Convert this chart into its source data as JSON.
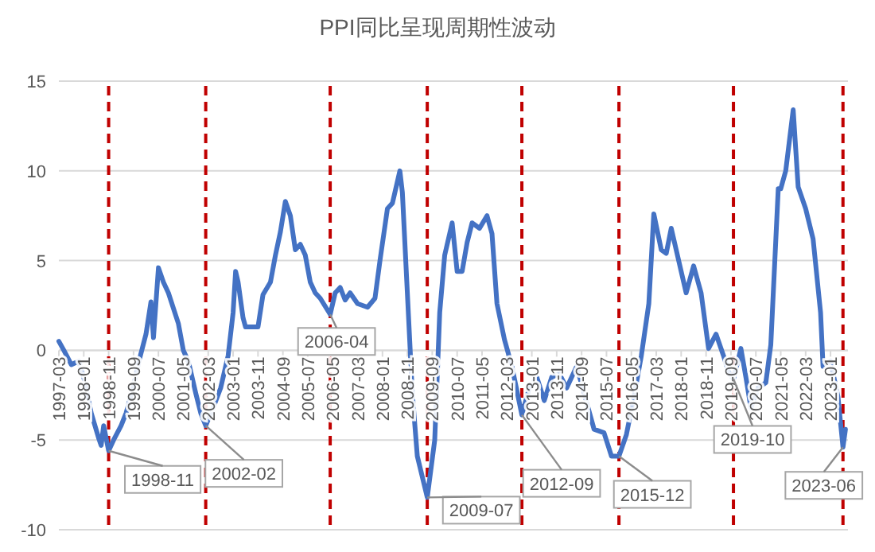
{
  "chart_data": {
    "type": "line",
    "title": "PPI同比呈现周期性波动",
    "x": [
      "1997-03",
      "1997-05",
      "1997-08",
      "1997-11",
      "1998-01",
      "1998-04",
      "1998-07",
      "1998-08",
      "1998-09",
      "1998-11",
      "1999-01",
      "1999-04",
      "1999-06",
      "1999-09",
      "1999-11",
      "2000-02",
      "2000-04",
      "2000-05",
      "2000-07",
      "2000-09",
      "2000-11",
      "2001-03",
      "2001-05",
      "2001-07",
      "2001-10",
      "2001-12",
      "2002-02",
      "2002-05",
      "2002-08",
      "2002-11",
      "2003-01",
      "2003-02",
      "2003-03",
      "2003-05",
      "2003-06",
      "2003-11",
      "2004-01",
      "2004-04",
      "2004-06",
      "2004-08",
      "2004-10",
      "2004-12",
      "2005-02",
      "2005-04",
      "2005-06",
      "2005-08",
      "2005-10",
      "2005-12",
      "2006-04",
      "2006-06",
      "2006-08",
      "2006-10",
      "2006-12",
      "2007-03",
      "2007-07",
      "2007-10",
      "2007-12",
      "2008-03",
      "2008-05",
      "2008-08",
      "2008-09",
      "2009-01",
      "2009-03",
      "2009-07",
      "2009-10",
      "2009-12",
      "2010-02",
      "2010-05",
      "2010-07",
      "2010-09",
      "2010-11",
      "2011-01",
      "2011-04",
      "2011-07",
      "2011-09",
      "2011-11",
      "2012-02",
      "2012-05",
      "2012-09",
      "2012-12",
      "2013-03",
      "2013-06",
      "2013-09",
      "2013-12",
      "2014-03",
      "2014-07",
      "2014-10",
      "2015-02",
      "2015-06",
      "2015-09",
      "2015-12",
      "2016-03",
      "2016-06",
      "2016-09",
      "2016-12",
      "2017-02",
      "2017-05",
      "2017-07",
      "2017-09",
      "2017-12",
      "2018-03",
      "2018-06",
      "2018-09",
      "2018-12",
      "2019-03",
      "2019-06",
      "2019-08",
      "2019-10",
      "2020-01",
      "2020-03",
      "2020-05",
      "2020-08",
      "2020-11",
      "2021-01",
      "2021-04",
      "2021-05",
      "2021-07",
      "2021-10",
      "2021-12",
      "2022-03",
      "2022-06",
      "2022-09",
      "2022-10",
      "2023-01",
      "2023-04",
      "2023-06",
      "2023-07"
    ],
    "series": [
      {
        "color": "#4472c4",
        "values": [
          0.5,
          0.0,
          -0.8,
          -0.6,
          -1.5,
          -3.5,
          -4.9,
          -5.3,
          -4.2,
          -5.6,
          -5.0,
          -4.2,
          -3.5,
          -2.0,
          -0.7,
          0.9,
          2.7,
          0.7,
          4.6,
          3.8,
          3.2,
          1.5,
          0.0,
          -0.6,
          -2.4,
          -3.5,
          -4.2,
          -3.2,
          -2.1,
          -0.3,
          2.1,
          4.4,
          3.8,
          1.8,
          1.3,
          1.3,
          3.1,
          3.8,
          5.3,
          6.6,
          8.3,
          7.5,
          5.6,
          5.9,
          5.3,
          3.8,
          3.2,
          2.9,
          2.0,
          3.2,
          3.5,
          2.8,
          3.2,
          2.6,
          2.4,
          2.9,
          5.0,
          7.9,
          8.2,
          10.0,
          8.8,
          -2.4,
          -5.9,
          -8.2,
          -5.0,
          2.1,
          5.3,
          7.1,
          4.4,
          4.4,
          6.0,
          7.1,
          6.8,
          7.5,
          6.5,
          2.6,
          0.6,
          -0.9,
          -3.6,
          -2.1,
          -1.5,
          -2.8,
          -1.5,
          -1.3,
          -2.1,
          -0.9,
          -2.4,
          -4.4,
          -4.6,
          -5.9,
          -5.9,
          -4.7,
          -2.6,
          -0.3,
          2.6,
          7.6,
          5.6,
          5.4,
          6.8,
          5.0,
          3.2,
          4.7,
          3.2,
          0.1,
          0.9,
          -0.3,
          -1.2,
          -1.6,
          0.1,
          -1.5,
          -3.2,
          -2.1,
          -1.8,
          0.3,
          9.0,
          9.0,
          10.0,
          13.4,
          9.1,
          7.9,
          6.2,
          2.1,
          -0.9,
          -0.6,
          -2.6,
          -5.4,
          -4.4
        ]
      }
    ],
    "xlim": [
      "1997-03",
      "2023-08"
    ],
    "xticks": [
      "1997-03",
      "1998-01",
      "1998-11",
      "1999-09",
      "2000-07",
      "2001-05",
      "2002-03",
      "2003-01",
      "2003-11",
      "2004-09",
      "2005-07",
      "2006-05",
      "2007-03",
      "2008-01",
      "2008-11",
      "2009-09",
      "2010-07",
      "2011-05",
      "2012-03",
      "2013-01",
      "2013-11",
      "2014-09",
      "2015-07",
      "2016-05",
      "2017-03",
      "2018-01",
      "2018-11",
      "2019-09",
      "2020-07",
      "2021-05",
      "2022-03",
      "2023-01"
    ],
    "ylim": [
      -10,
      15
    ],
    "yticks": [
      -10,
      -5,
      0,
      5,
      10,
      15
    ],
    "grid": "y",
    "ref_lines": [
      {
        "axis": "x",
        "value": "1998-11",
        "color": "#c00000",
        "line_style": "dashed"
      },
      {
        "axis": "x",
        "value": "2002-02",
        "color": "#c00000",
        "line_style": "dashed"
      },
      {
        "axis": "x",
        "value": "2006-04",
        "color": "#c00000",
        "line_style": "dashed"
      },
      {
        "axis": "x",
        "value": "2009-07",
        "color": "#c00000",
        "line_style": "dashed"
      },
      {
        "axis": "x",
        "value": "2012-09",
        "color": "#c00000",
        "line_style": "dashed"
      },
      {
        "axis": "x",
        "value": "2015-12",
        "color": "#c00000",
        "line_style": "dashed"
      },
      {
        "axis": "x",
        "value": "2019-10",
        "color": "#c00000",
        "line_style": "dashed"
      },
      {
        "axis": "x",
        "value": "2023-06",
        "color": "#c00000",
        "line_style": "dashed"
      }
    ],
    "annotations": [
      {
        "text": "1998-11",
        "x": "1998-11",
        "y": -5.6
      },
      {
        "text": "2002-02",
        "x": "2002-02",
        "y": -4.2
      },
      {
        "text": "2006-04",
        "x": "2006-04",
        "y": 2.0
      },
      {
        "text": "2009-07",
        "x": "2009-07",
        "y": -8.2
      },
      {
        "text": "2012-09",
        "x": "2012-09",
        "y": -3.6
      },
      {
        "text": "2015-12",
        "x": "2015-12",
        "y": -5.9
      },
      {
        "text": "2019-10",
        "x": "2019-10",
        "y": -1.6
      },
      {
        "text": "2023-06",
        "x": "2023-06",
        "y": -5.4
      }
    ]
  }
}
